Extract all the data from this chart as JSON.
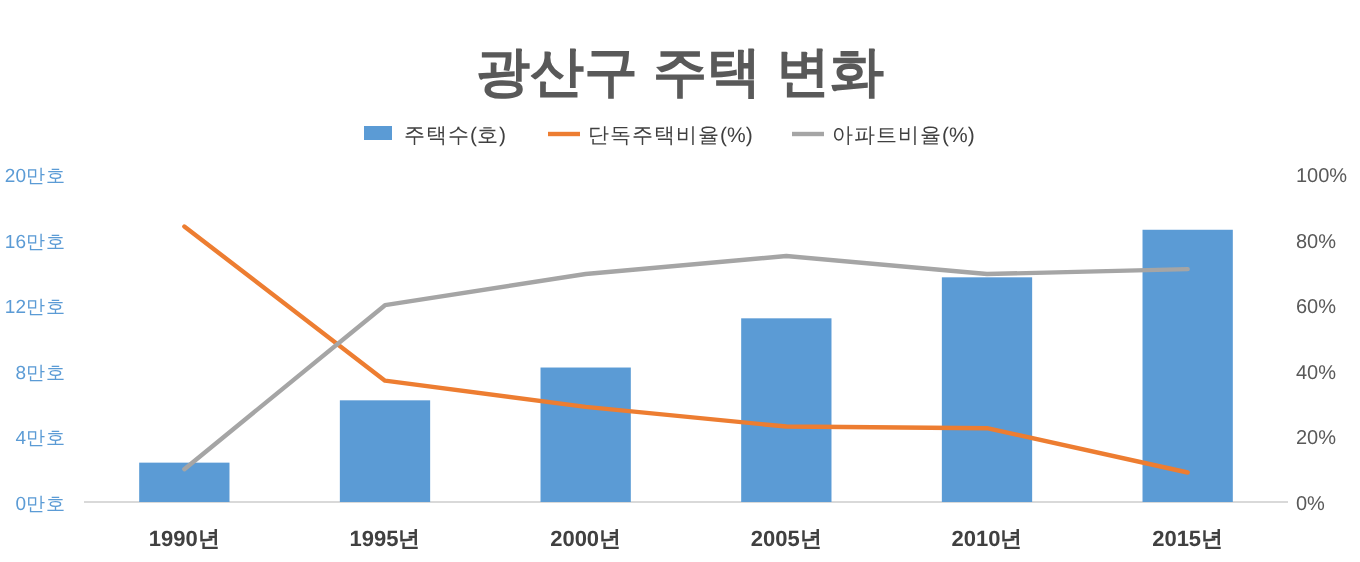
{
  "chart_data": {
    "type": "bar",
    "title": "광산구 주택 변화",
    "categories": [
      "1990년",
      "1995년",
      "2000년",
      "2005년",
      "2010년",
      "2015년"
    ],
    "series": [
      {
        "name": "주택수(호)",
        "color": "#5b9bd5",
        "values": [
          2.4,
          6.2,
          8.2,
          11.2,
          13.7,
          16.6
        ]
      },
      {
        "name": "단독주택비율(%)",
        "type": "line",
        "axis": "y2",
        "color": "#ed7d31",
        "values": [
          84,
          37,
          29,
          23,
          22.5,
          9
        ]
      },
      {
        "name": "아파트비율(%)",
        "type": "line",
        "axis": "y2",
        "color": "#a5a5a5",
        "values": [
          10,
          60,
          69.5,
          75,
          69.5,
          71
        ]
      }
    ],
    "ylim": [
      0,
      20
    ],
    "yticks": [
      {
        "value": 0,
        "label": "0만호"
      },
      {
        "value": 4,
        "label": "4만호"
      },
      {
        "value": 8,
        "label": "8만호"
      },
      {
        "value": 12,
        "label": "12만호"
      },
      {
        "value": 16,
        "label": "16만호"
      },
      {
        "value": 20,
        "label": "20만호"
      }
    ],
    "y2lim": [
      0,
      100
    ],
    "y2ticks": [
      {
        "value": 0,
        "label": "0%"
      },
      {
        "value": 20,
        "label": "20%"
      },
      {
        "value": 40,
        "label": "40%"
      },
      {
        "value": 60,
        "label": "60%"
      },
      {
        "value": 80,
        "label": "80%"
      },
      {
        "value": 100,
        "label": "100%"
      }
    ],
    "legend": "top"
  }
}
